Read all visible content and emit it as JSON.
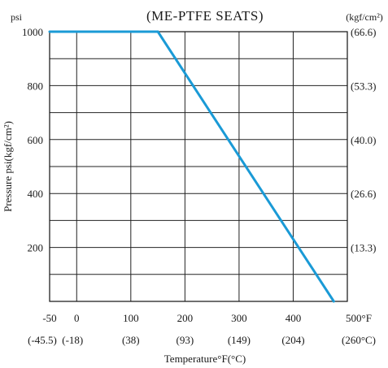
{
  "chart_data": {
    "type": "line",
    "title": "(ME-PTFE SEATS)",
    "ylabel": "Pressure psi(kgf/cm²)",
    "xlabel": "Temperature°F(°C)",
    "y_unit_left": "psi",
    "y_unit_right": "(kgf/cm²)",
    "xlim": [
      -50,
      500
    ],
    "ylim": [
      0,
      1000
    ],
    "grid": true,
    "x_ticks_primary": [
      "-50",
      "0",
      "100",
      "200",
      "300",
      "400",
      "500°F"
    ],
    "x_ticks_secondary": [
      "(-45.5)",
      "(-18)",
      "(38)",
      "(93)",
      "(149)",
      "(204)",
      "(260°C)"
    ],
    "y_ticks_left": [
      "1000",
      "800",
      "600",
      "400",
      "200"
    ],
    "y_ticks_right": [
      "(66.6)",
      "(53.3)",
      "(40.0)",
      "(26.6)",
      "(13.3)"
    ],
    "series": [
      {
        "x": [
          -50,
          150,
          475
        ],
        "y": [
          1000,
          1000,
          0
        ],
        "color": "#1a9ad6"
      }
    ]
  }
}
